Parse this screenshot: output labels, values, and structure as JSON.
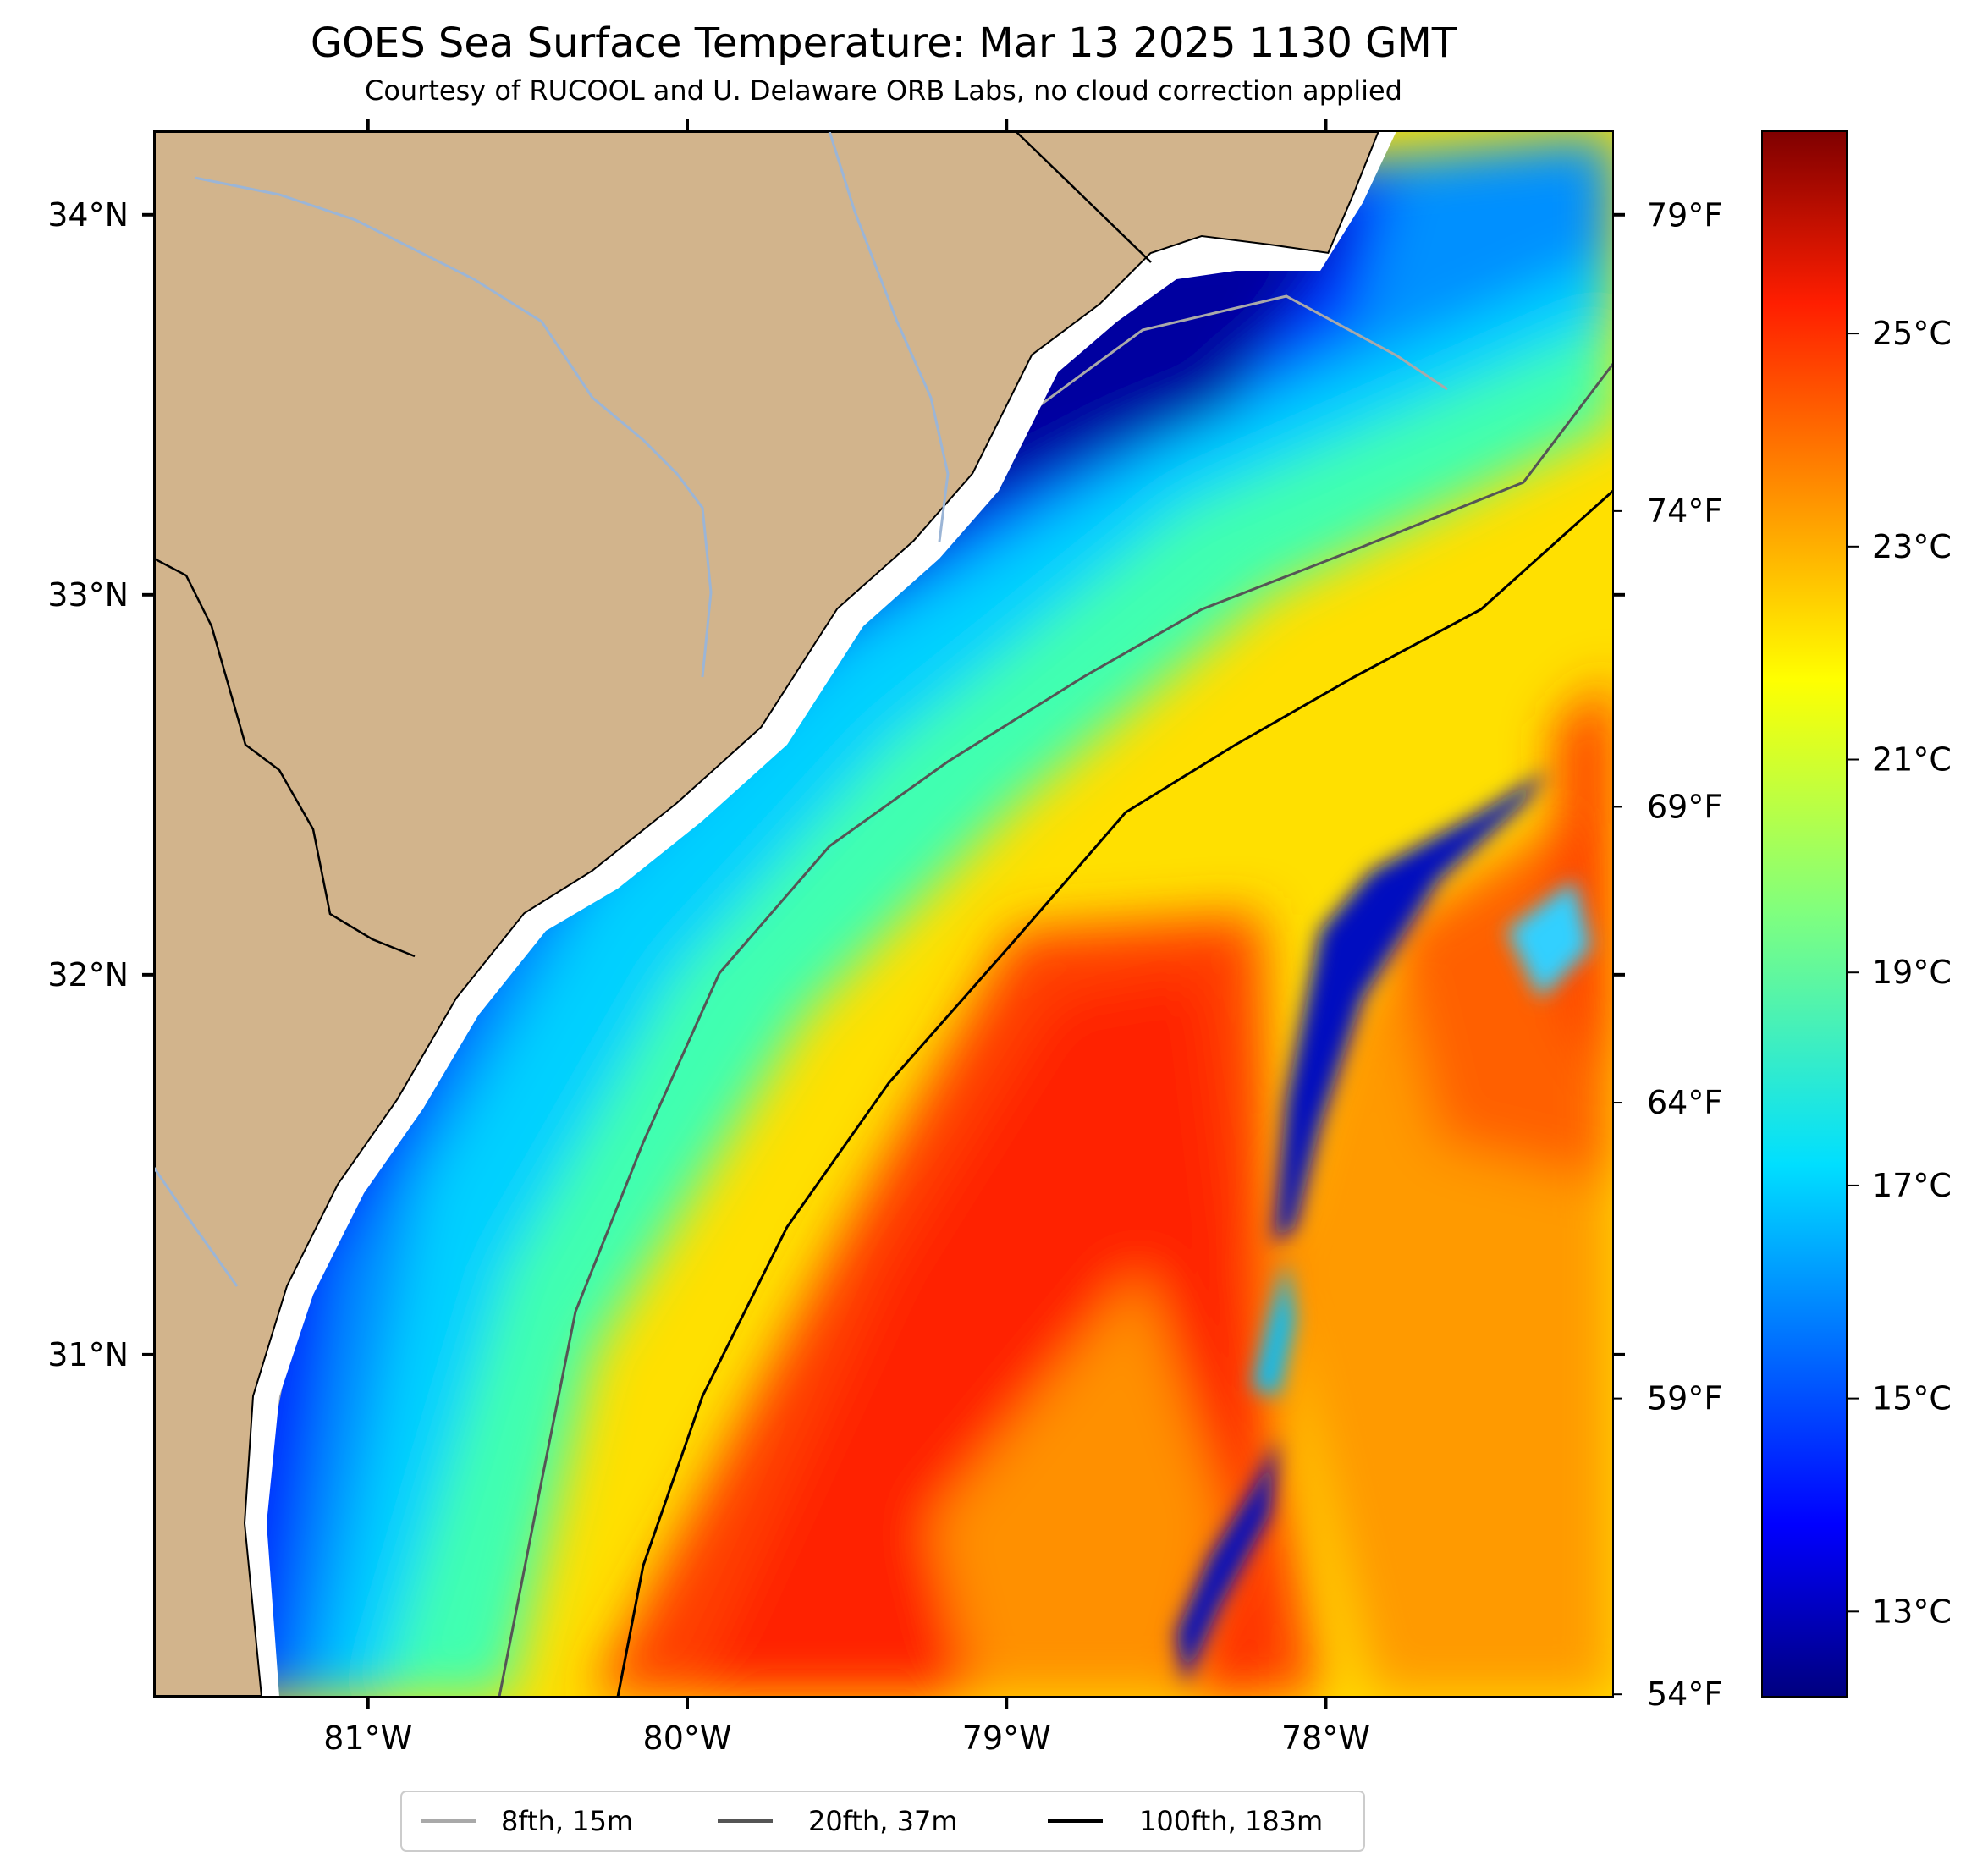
{
  "title": "GOES Sea Surface Temperature: Mar 13 2025 1130 GMT",
  "subtitle": "Courtesy of RUCOOL and U. Delaware ORB Labs, no cloud correction applied",
  "map": {
    "lon_range": [
      -81.67,
      -77.1
    ],
    "lat_range": [
      30.1,
      34.22
    ],
    "lon_ticks": [
      {
        "value": -81,
        "label": "81°W"
      },
      {
        "value": -80,
        "label": "80°W"
      },
      {
        "value": -79,
        "label": "79°W"
      },
      {
        "value": -78,
        "label": "78°W"
      }
    ],
    "lat_ticks": [
      {
        "value": 34,
        "label": "34°N"
      },
      {
        "value": 33,
        "label": "33°N"
      },
      {
        "value": 32,
        "label": "32°N"
      },
      {
        "value": 31,
        "label": "31°N"
      }
    ],
    "right_axis_ticks": [
      {
        "value_f": 79,
        "label": "79°F"
      },
      {
        "value_f": 74,
        "label": "74°F"
      },
      {
        "value_f": 69,
        "label": "69°F"
      },
      {
        "value_f": 64,
        "label": "64°F"
      },
      {
        "value_f": 59,
        "label": "59°F"
      },
      {
        "value_f": 54,
        "label": "54°F"
      }
    ],
    "colors": {
      "land": "#d2b48c",
      "coast": "#000000",
      "rivers": "#9bb5d6"
    }
  },
  "colorbar": {
    "range_c": [
      12.2,
      26.9
    ],
    "ticks": [
      {
        "value_c": 25,
        "label": "25°C"
      },
      {
        "value_c": 23,
        "label": "23°C"
      },
      {
        "value_c": 21,
        "label": "21°C"
      },
      {
        "value_c": 19,
        "label": "19°C"
      },
      {
        "value_c": 17,
        "label": "17°C"
      },
      {
        "value_c": 15,
        "label": "15°C"
      },
      {
        "value_c": 13,
        "label": "13°C"
      }
    ],
    "colormap": "jet"
  },
  "legend": {
    "items": [
      {
        "label": "8fth, 15m",
        "color": "#a9a9a9"
      },
      {
        "label": "20fth, 37m",
        "color": "#555555"
      },
      {
        "label": "100fth, 183m",
        "color": "#000000"
      }
    ]
  }
}
